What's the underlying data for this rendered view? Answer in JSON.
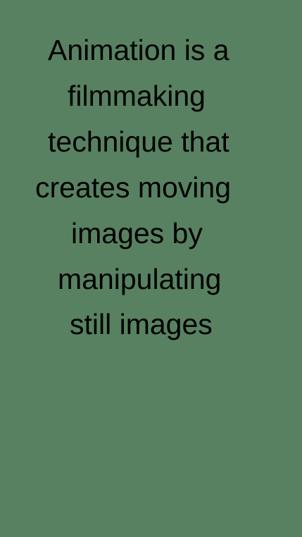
{
  "screen": {
    "background_color": "#588161",
    "text_color": "#000000",
    "caption_lines": [
      "Animation is a",
      "filmmaking",
      "technique that",
      "creates moving",
      "images by",
      "manipulating",
      "still images"
    ]
  }
}
